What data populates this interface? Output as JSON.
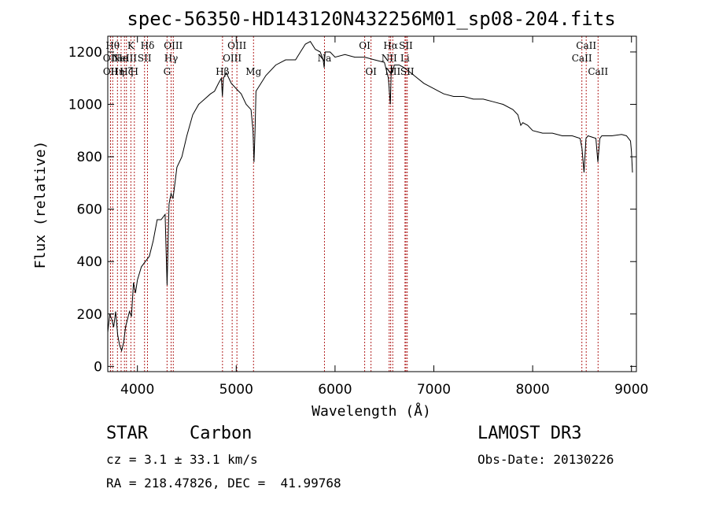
{
  "chart_data": {
    "type": "line",
    "title": "spec-56350-HD143120N432256M01_sp08-204.fits",
    "xlabel": "Wavelength (Å)",
    "ylabel": "Flux (relative)",
    "xlim": [
      3700,
      9050
    ],
    "ylim": [
      -20,
      1260
    ],
    "xticks": [
      4000,
      5000,
      6000,
      7000,
      8000,
      9000
    ],
    "yticks": [
      0,
      200,
      400,
      600,
      800,
      1000,
      1200
    ],
    "series": [
      {
        "name": "flux",
        "x": [
          3700,
          3720,
          3740,
          3760,
          3780,
          3800,
          3820,
          3840,
          3860,
          3880,
          3900,
          3920,
          3940,
          3960,
          3980,
          4000,
          4040,
          4080,
          4120,
          4160,
          4200,
          4240,
          4280,
          4300,
          4320,
          4340,
          4360,
          4400,
          4450,
          4500,
          4560,
          4620,
          4680,
          4740,
          4780,
          4820,
          4850,
          4860,
          4870,
          4900,
          4950,
          5000,
          5050,
          5100,
          5150,
          5170,
          5180,
          5190,
          5200,
          5250,
          5300,
          5400,
          5500,
          5600,
          5650,
          5700,
          5750,
          5800,
          5850,
          5880,
          5890,
          5900,
          5950,
          6000,
          6100,
          6200,
          6300,
          6400,
          6500,
          6540,
          6560,
          6570,
          6580,
          6600,
          6650,
          6700,
          6800,
          6900,
          7000,
          7050,
          7100,
          7200,
          7300,
          7400,
          7500,
          7600,
          7700,
          7800,
          7850,
          7880,
          7900,
          7950,
          8000,
          8100,
          8200,
          8300,
          8400,
          8480,
          8500,
          8520,
          8540,
          8560,
          8600,
          8640,
          8660,
          8680,
          8700,
          8800,
          8900,
          8950,
          8990,
          9000,
          9010
        ],
        "values": [
          130,
          200,
          180,
          150,
          210,
          120,
          80,
          60,
          90,
          150,
          180,
          210,
          190,
          320,
          280,
          330,
          380,
          400,
          420,
          480,
          560,
          560,
          580,
          310,
          620,
          660,
          640,
          760,
          800,
          880,
          960,
          1000,
          1020,
          1040,
          1050,
          1080,
          1100,
          1030,
          1100,
          1120,
          1080,
          1060,
          1040,
          1000,
          980,
          900,
          780,
          900,
          1050,
          1080,
          1110,
          1150,
          1170,
          1170,
          1200,
          1230,
          1240,
          1210,
          1200,
          1170,
          1140,
          1200,
          1200,
          1180,
          1190,
          1180,
          1180,
          1170,
          1160,
          1100,
          1000,
          1150,
          1120,
          1150,
          1150,
          1140,
          1110,
          1080,
          1060,
          1050,
          1040,
          1030,
          1030,
          1020,
          1020,
          1010,
          1000,
          980,
          960,
          920,
          930,
          920,
          900,
          890,
          890,
          880,
          880,
          870,
          830,
          740,
          870,
          880,
          875,
          870,
          780,
          870,
          880,
          880,
          885,
          880,
          860,
          820,
          740
        ]
      }
    ],
    "lines": [
      {
        "wave": 3750,
        "label": "Hθ",
        "row": 0
      },
      {
        "wave": 3727,
        "label": "OII",
        "row": 1
      },
      {
        "wave": 3728,
        "label": "OII",
        "row": 2
      },
      {
        "wave": 3798,
        "label": "Hη",
        "row": 2
      },
      {
        "wave": 3835,
        "label": "He",
        "row": 1
      },
      {
        "wave": 3869,
        "label": "NeIII",
        "row": 1
      },
      {
        "wave": 3889,
        "label": "Hζ",
        "row": 2
      },
      {
        "wave": 3934,
        "label": "K",
        "row": 0
      },
      {
        "wave": 3969,
        "label": "H",
        "row": 2
      },
      {
        "wave": 4072,
        "label": "SII",
        "row": 1
      },
      {
        "wave": 4102,
        "label": "Hδ",
        "row": 0
      },
      {
        "wave": 4300,
        "label": "G",
        "row": 2
      },
      {
        "wave": 4341,
        "label": "Hγ",
        "row": 1
      },
      {
        "wave": 4363,
        "label": "OIII",
        "row": 0
      },
      {
        "wave": 4861,
        "label": "Hβ",
        "row": 2
      },
      {
        "wave": 4959,
        "label": "OIII",
        "row": 1
      },
      {
        "wave": 5007,
        "label": "OIII",
        "row": 0
      },
      {
        "wave": 5175,
        "label": "Mg",
        "row": 2
      },
      {
        "wave": 5893,
        "label": "Na",
        "row": 1
      },
      {
        "wave": 6300,
        "label": "OI",
        "row": 0
      },
      {
        "wave": 6364,
        "label": "OI",
        "row": 2
      },
      {
        "wave": 6548,
        "label": "NII",
        "row": 1
      },
      {
        "wave": 6563,
        "label": "Hα",
        "row": 0
      },
      {
        "wave": 6584,
        "label": "NII",
        "row": 2
      },
      {
        "wave": 6708,
        "label": "Li",
        "row": 1
      },
      {
        "wave": 6717,
        "label": "SII",
        "row": 0
      },
      {
        "wave": 6731,
        "label": "SII",
        "row": 2
      },
      {
        "wave": 8498,
        "label": "CaII",
        "row": 1
      },
      {
        "wave": 8542,
        "label": "CaII",
        "row": 0
      },
      {
        "wave": 8662,
        "label": "CaII",
        "row": 2
      }
    ]
  },
  "info": {
    "classification": "STAR    Carbon",
    "survey": "LAMOST DR3",
    "redshift": "cz = 3.1 ± 33.1 km/s",
    "obs_date": "Obs-Date: 20130226",
    "coords": "RA = 218.47826, DEC =  41.99768"
  }
}
